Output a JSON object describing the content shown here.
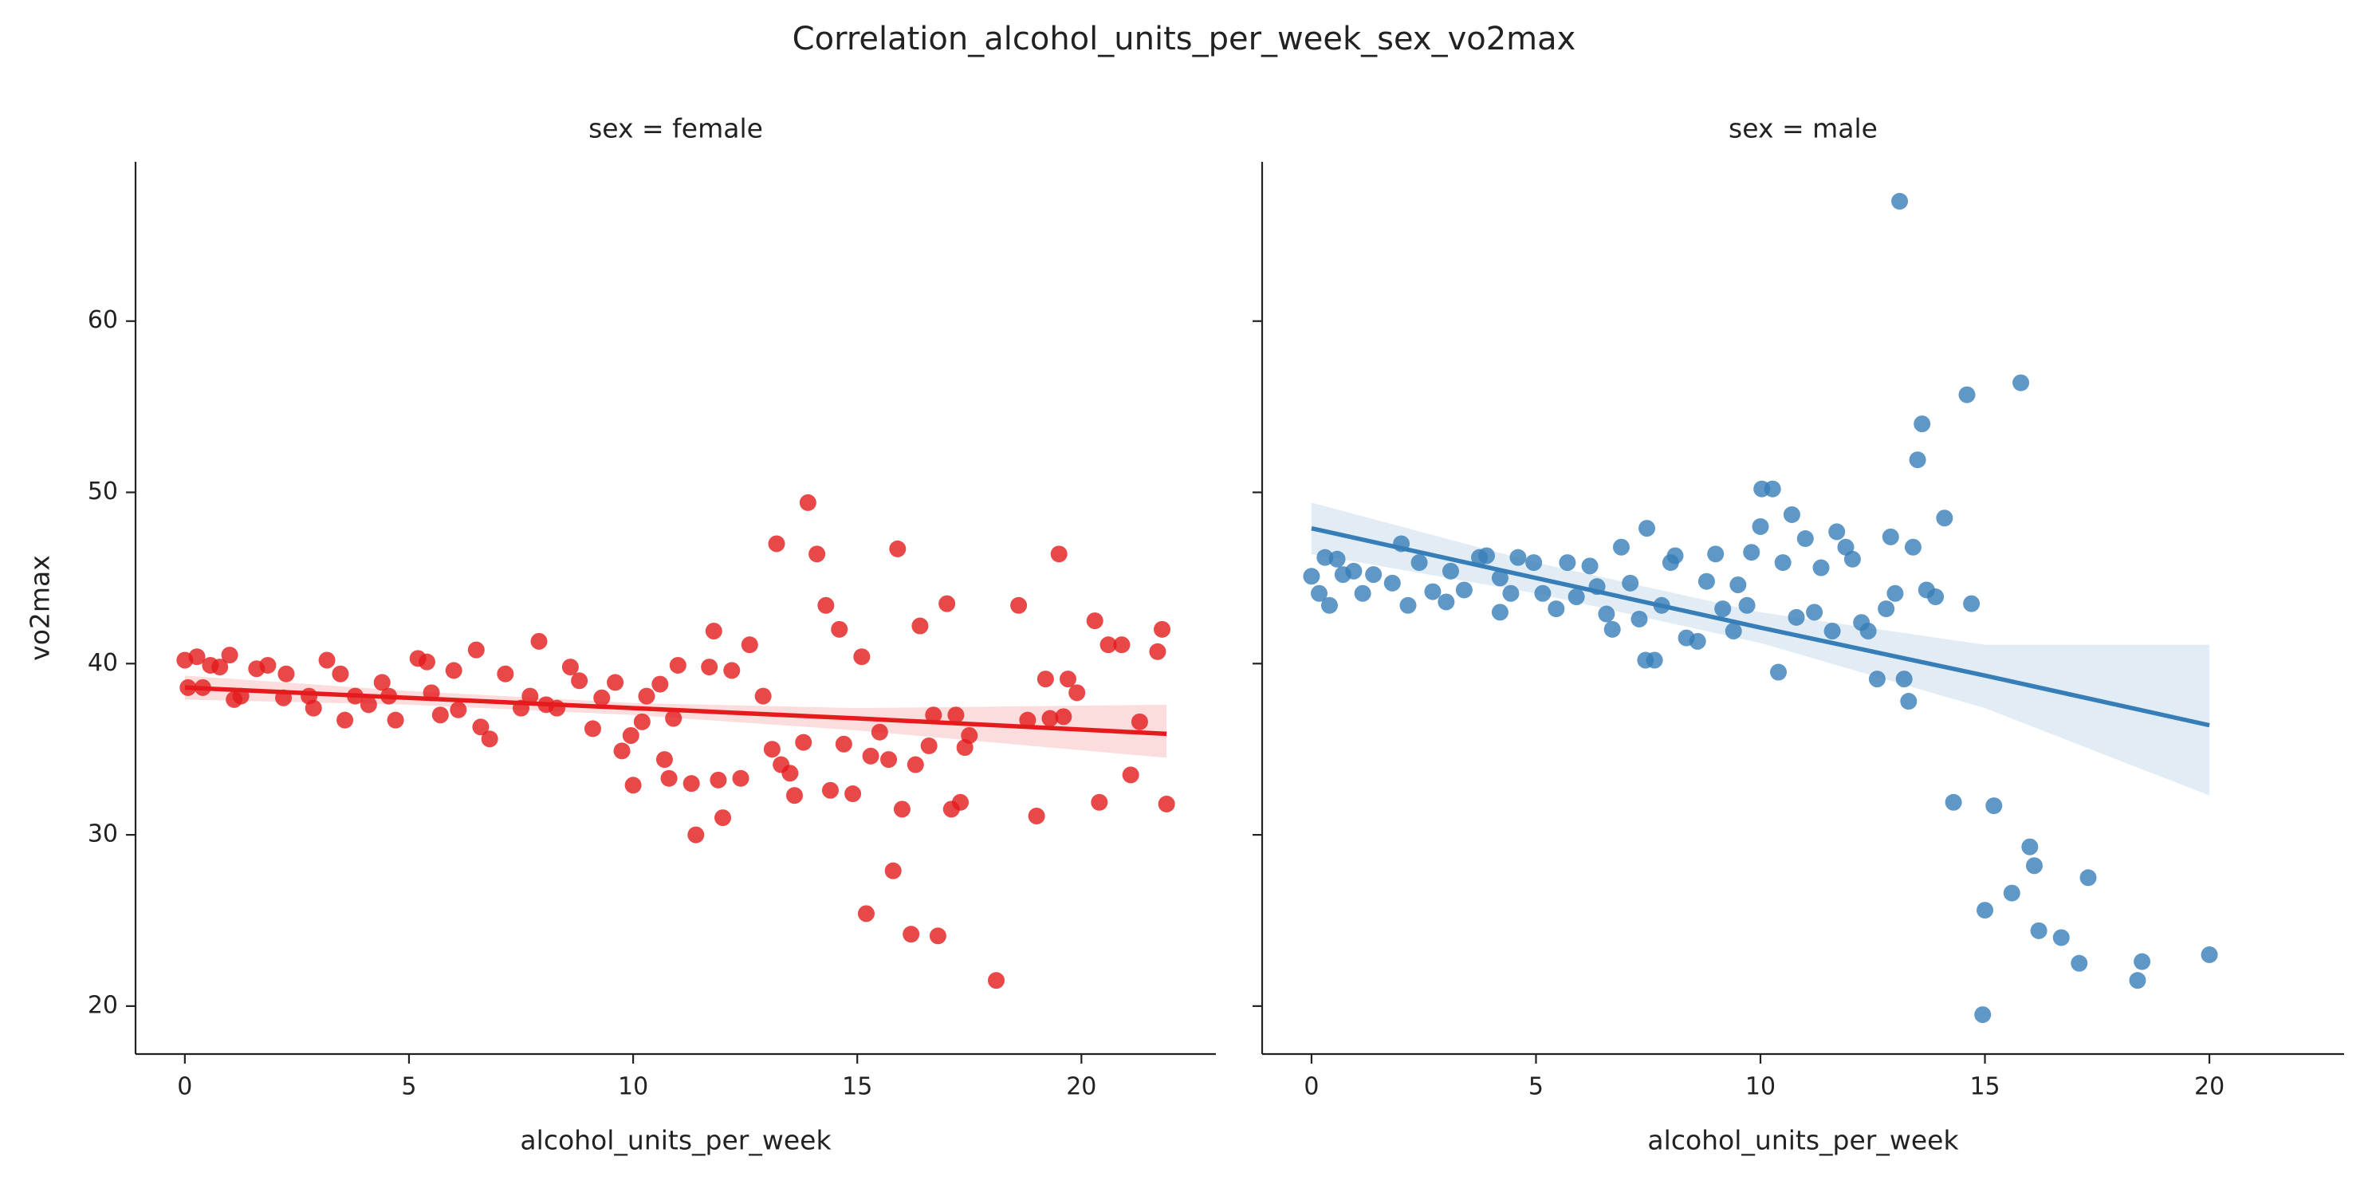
{
  "title": "Correlation_alcohol_units_per_week_sex_vo2max",
  "chart_data": [
    {
      "type": "scatter",
      "title": "sex = female",
      "xlabel": "alcohol_units_per_week",
      "ylabel": "vo2max",
      "color": "#e41a1c",
      "xlim": [
        -1.1,
        23.0
      ],
      "ylim": [
        17.2,
        69.3
      ],
      "xticks": [
        0,
        5,
        10,
        15,
        20
      ],
      "yticks": [
        20,
        30,
        40,
        50,
        60
      ],
      "ytick_labels": true,
      "x": [
        0,
        0.07,
        0.27,
        0.57,
        0.78,
        1.0,
        1.1,
        1.6,
        1.85,
        2.26,
        2.77,
        3.17,
        3.47,
        3.57,
        4.1,
        4.4,
        4.7,
        5.2,
        5.4,
        5.7,
        6.0,
        6.5,
        6.6,
        6.8,
        7.15,
        7.9,
        8.06,
        8.6,
        8.8,
        9.1,
        9.6,
        9.75,
        9.95,
        10.0,
        10.3,
        10.6,
        10.7,
        10.8,
        11.0,
        11.3,
        11.4,
        11.7,
        11.8,
        11.9,
        12.0,
        12.2,
        12.4,
        12.6,
        12.9,
        13.1,
        13.2,
        13.3,
        13.5,
        13.6,
        13.8,
        13.9,
        14.1,
        14.3,
        14.4,
        14.6,
        14.7,
        14.9,
        15.1,
        15.2,
        15.3,
        15.5,
        15.7,
        15.8,
        15.9,
        16.0,
        16.2,
        16.3,
        16.4,
        16.6,
        16.7,
        16.8,
        17.0,
        17.1,
        17.2,
        17.3,
        17.4,
        17.5,
        18.1,
        18.6,
        18.8,
        19.0,
        19.2,
        19.3,
        19.5,
        19.6,
        19.7,
        19.9,
        20.3,
        20.4,
        20.6,
        20.9,
        21.1,
        21.3,
        21.7,
        21.8,
        21.9,
        0.4,
        1.25,
        2.2,
        2.87,
        3.8,
        4.55,
        5.5,
        6.1,
        7.5,
        7.7,
        8.3,
        9.3,
        10.2,
        10.9
      ],
      "values": [
        40.2,
        38.6,
        40.4,
        39.9,
        39.8,
        40.5,
        37.9,
        39.7,
        39.9,
        39.4,
        38.1,
        40.2,
        39.4,
        36.7,
        37.6,
        38.9,
        36.7,
        40.3,
        40.1,
        37.0,
        39.6,
        40.8,
        36.3,
        35.6,
        39.4,
        41.3,
        37.6,
        39.8,
        39.0,
        36.2,
        38.9,
        34.9,
        35.8,
        32.9,
        38.1,
        38.8,
        34.4,
        33.3,
        39.9,
        33.0,
        30.0,
        39.8,
        41.9,
        33.2,
        31.0,
        39.6,
        33.3,
        41.1,
        38.1,
        35.0,
        47.0,
        34.1,
        33.6,
        32.3,
        35.4,
        49.4,
        46.4,
        43.4,
        32.6,
        42.0,
        35.3,
        32.4,
        40.4,
        25.4,
        34.6,
        36.0,
        34.4,
        27.9,
        46.7,
        31.5,
        24.2,
        34.1,
        42.2,
        35.2,
        37.0,
        24.1,
        43.5,
        31.5,
        37.0,
        31.9,
        35.1,
        35.8,
        21.5,
        43.4,
        36.7,
        31.1,
        39.1,
        36.8,
        46.4,
        36.9,
        39.1,
        38.3,
        42.5,
        31.9,
        41.1,
        41.1,
        33.5,
        36.6,
        40.7,
        42.0,
        31.8,
        38.6,
        38.1,
        38.0,
        37.4,
        38.1,
        38.1,
        38.3,
        37.3,
        37.4,
        38.1,
        37.4,
        38.0,
        36.6,
        36.8
      ],
      "fit": {
        "x": [
          0,
          5,
          10,
          15,
          21.9
        ],
        "values": [
          38.6,
          38.0,
          37.4,
          36.8,
          35.9
        ],
        "lower": [
          37.9,
          37.6,
          37.0,
          36.1,
          34.5
        ],
        "upper": [
          39.3,
          38.4,
          37.7,
          37.4,
          37.6
        ]
      }
    },
    {
      "type": "scatter",
      "title": "sex = male",
      "xlabel": "alcohol_units_per_week",
      "color": "#377eb8",
      "xlim": [
        -1.1,
        23.0
      ],
      "ylim": [
        17.2,
        69.3
      ],
      "xticks": [
        0,
        5,
        10,
        15,
        20
      ],
      "yticks": [
        20,
        30,
        40,
        50,
        60
      ],
      "ytick_labels": false,
      "x": [
        0,
        0.17,
        0.3,
        0.4,
        0.57,
        0.7,
        0.94,
        1.14,
        1.38,
        1.8,
        2.0,
        2.15,
        2.4,
        2.7,
        3.0,
        3.1,
        3.4,
        3.74,
        3.9,
        4.2,
        4.2,
        4.44,
        4.6,
        4.95,
        5.15,
        5.45,
        5.7,
        5.9,
        6.2,
        6.36,
        6.57,
        6.7,
        6.9,
        7.1,
        7.3,
        7.47,
        7.44,
        7.64,
        7.8,
        8.0,
        8.1,
        8.35,
        8.6,
        8.8,
        9.0,
        9.16,
        9.4,
        9.5,
        9.7,
        9.8,
        10.0,
        10.03,
        10.27,
        10.4,
        10.5,
        10.7,
        10.8,
        11.0,
        11.2,
        11.35,
        11.6,
        11.7,
        11.9,
        12.05,
        12.25,
        12.4,
        12.6,
        12.8,
        12.9,
        13.0,
        13.1,
        13.2,
        13.3,
        13.4,
        13.5,
        13.6,
        13.7,
        13.9,
        14.1,
        14.3,
        14.6,
        14.7,
        15.0,
        14.95,
        15.2,
        15.6,
        15.8,
        16.0,
        16.1,
        16.2,
        16.7,
        17.1,
        17.3,
        18.4,
        18.5,
        20.0
      ],
      "values": [
        45.1,
        44.1,
        46.2,
        43.4,
        46.1,
        45.2,
        45.4,
        44.1,
        45.2,
        44.7,
        47.0,
        43.4,
        45.9,
        44.2,
        43.6,
        45.4,
        44.3,
        46.2,
        46.3,
        45.0,
        43.0,
        44.1,
        46.2,
        45.9,
        44.1,
        43.2,
        45.9,
        43.9,
        45.7,
        44.5,
        42.9,
        42.0,
        46.8,
        44.7,
        42.6,
        47.9,
        40.2,
        40.2,
        43.4,
        45.9,
        46.3,
        41.5,
        41.3,
        44.8,
        46.4,
        43.2,
        41.9,
        44.6,
        43.4,
        46.5,
        48.0,
        50.2,
        50.2,
        39.5,
        45.9,
        48.7,
        42.7,
        47.3,
        43.0,
        45.6,
        41.9,
        47.7,
        46.8,
        46.1,
        42.4,
        41.9,
        39.1,
        43.2,
        47.4,
        44.1,
        67.0,
        39.1,
        37.8,
        46.8,
        51.9,
        54.0,
        44.3,
        43.9,
        48.5,
        31.9,
        55.7,
        43.5,
        25.6,
        19.5,
        31.7,
        26.6,
        56.4,
        29.3,
        28.2,
        24.4,
        24.0,
        22.5,
        27.5,
        21.5,
        22.6,
        23.0
      ],
      "fit": {
        "x": [
          0,
          5,
          10,
          15,
          20
        ],
        "values": [
          47.9,
          45.0,
          42.1,
          39.3,
          36.4
        ],
        "lower": [
          46.4,
          44.1,
          41.2,
          37.4,
          32.3
        ],
        "upper": [
          49.4,
          45.9,
          43.0,
          41.1,
          41.1
        ]
      }
    }
  ]
}
